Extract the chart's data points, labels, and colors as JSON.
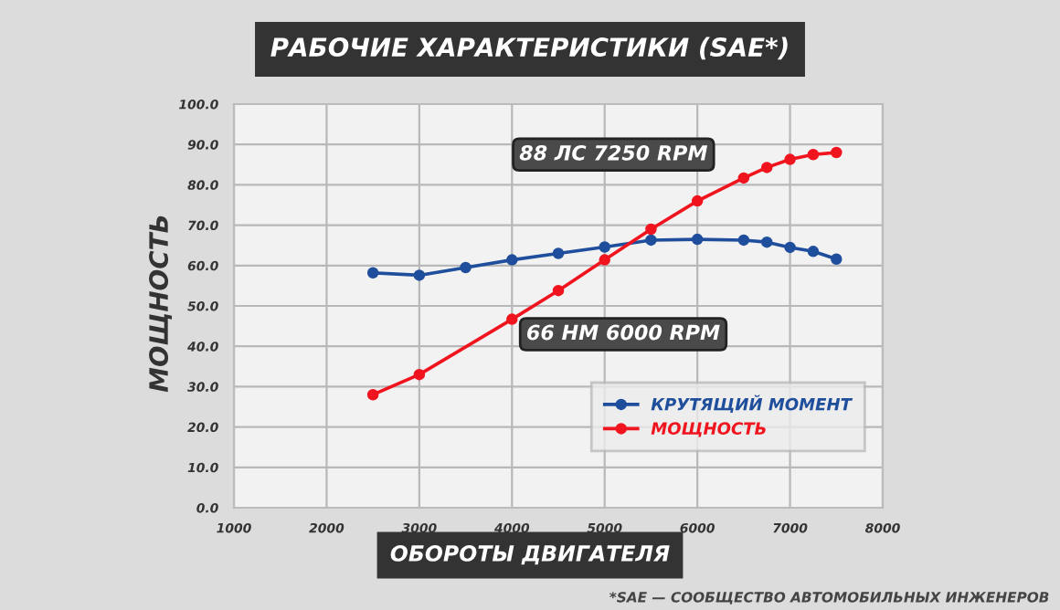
{
  "chart_data": {
    "type": "line",
    "title": "РАБОЧИЕ ХАРАКТЕРИСТИКИ (SAE*)",
    "xlabel": "ОБОРОТЫ ДВИГАТЕЛЯ",
    "ylabel": "МОЩНОСТЬ",
    "series": [
      {
        "name": "КРУТЯЩИЙ МОМЕНТ",
        "color": "#1f4e9c",
        "x": [
          2500,
          3000,
          3500,
          4000,
          4500,
          5000,
          5500,
          6000,
          6500,
          6750,
          7000,
          7250,
          7500
        ],
        "values": [
          58.2,
          57.6,
          59.5,
          61.4,
          63.0,
          64.6,
          66.3,
          66.5,
          66.3,
          65.8,
          64.5,
          63.5,
          61.6
        ]
      },
      {
        "name": "МОЩНОСТЬ",
        "color": "#f0141e",
        "x": [
          2500,
          3000,
          4000,
          4500,
          5000,
          5500,
          6000,
          6500,
          6750,
          7000,
          7250,
          7500
        ],
        "values": [
          28.0,
          33.0,
          46.7,
          53.8,
          61.4,
          69.0,
          76.0,
          81.7,
          84.3,
          86.3,
          87.5,
          88.0
        ]
      }
    ],
    "xlim": [
      1000,
      8000
    ],
    "xticks": [
      1000,
      2000,
      3000,
      4000,
      5000,
      6000,
      7000,
      8000
    ],
    "ylim": [
      0,
      100
    ],
    "yticks": [
      {
        "value": 0,
        "label": "0.0"
      },
      {
        "value": 10,
        "label": "10.0"
      },
      {
        "value": 20,
        "label": "20.0"
      },
      {
        "value": 30,
        "label": "30.0"
      },
      {
        "value": 40,
        "label": "40.0"
      },
      {
        "value": 50,
        "label": "50.0"
      },
      {
        "value": 60,
        "label": "60.0"
      },
      {
        "value": 70,
        "label": "70.0"
      },
      {
        "value": 80,
        "label": "80.0"
      },
      {
        "value": 90,
        "label": "90.0"
      },
      {
        "value": 100,
        "label": "100.0"
      }
    ],
    "grid": true,
    "legend": "bottom right",
    "marker": "circle",
    "line_style": "solid",
    "annotations": [
      "88 ЛС 7250 RPM",
      "66 НМ 6000 RPM",
      "*SAE — СООБЩЕСТВО АВТОМОБИЛЬНЫХ ИНЖЕНЕРОВ"
    ]
  }
}
